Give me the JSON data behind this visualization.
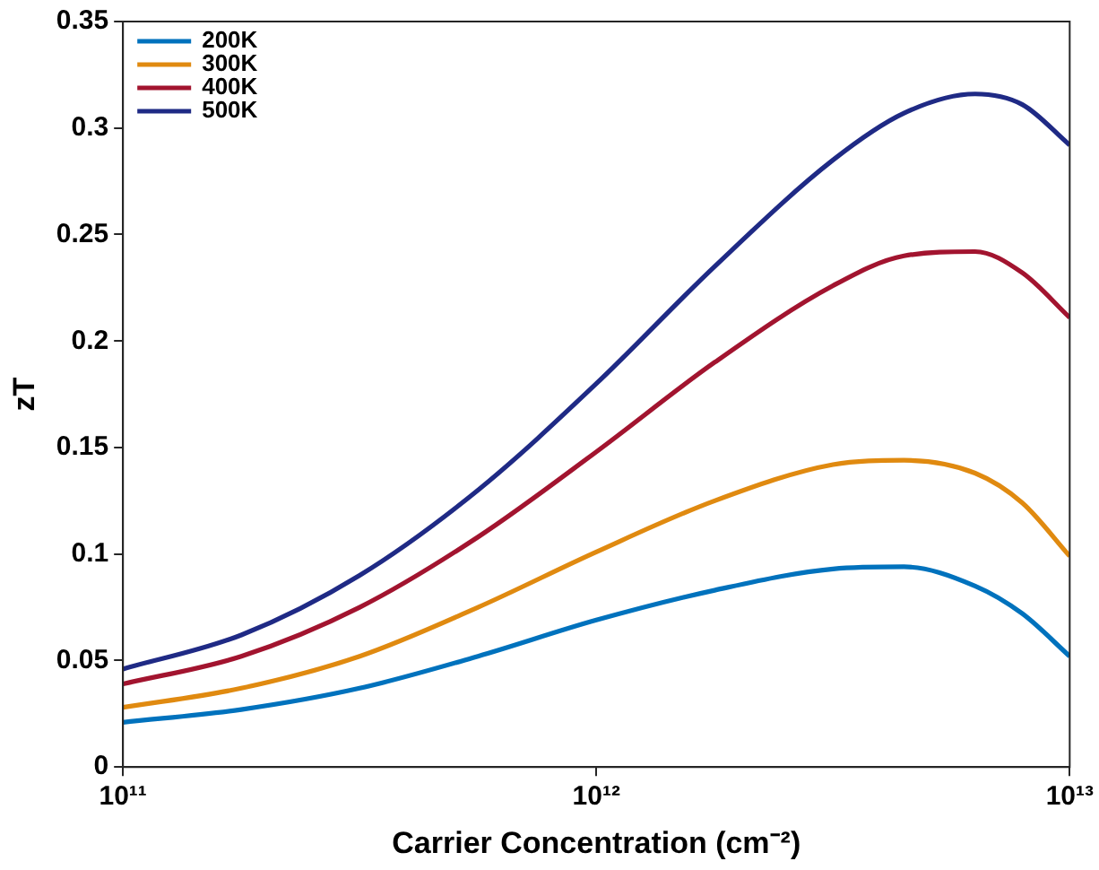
{
  "chart_data": {
    "type": "line",
    "xlabel": "Carrier Concentration (cm⁻²)",
    "ylabel": "zT",
    "x": [
      100000000000.0,
      177800000000.0,
      316200000000.0,
      562300000000.0,
      1000000000000.0,
      1778000000000.0,
      3162000000000.0,
      4467000000000.0,
      6310000000000.0,
      7943000000000.0,
      10000000000000.0
    ],
    "series": [
      {
        "name": "200K",
        "color": "#0072bd",
        "values": [
          0.021,
          0.027,
          0.037,
          0.052,
          0.069,
          0.083,
          0.093,
          0.094,
          0.085,
          0.072,
          0.052
        ]
      },
      {
        "name": "300K",
        "color": "#e08a10",
        "values": [
          0.028,
          0.037,
          0.052,
          0.075,
          0.101,
          0.125,
          0.142,
          0.144,
          0.138,
          0.124,
          0.099
        ]
      },
      {
        "name": "400K",
        "color": "#a2142f",
        "values": [
          0.039,
          0.052,
          0.075,
          0.108,
          0.148,
          0.19,
          0.226,
          0.24,
          0.242,
          0.232,
          0.211
        ]
      },
      {
        "name": "500K",
        "color": "#1f2a85",
        "values": [
          0.046,
          0.062,
          0.09,
          0.13,
          0.18,
          0.235,
          0.285,
          0.307,
          0.316,
          0.311,
          0.292
        ]
      }
    ],
    "log": "x",
    "xlim": [
      100000000000.0,
      10000000000000.0
    ],
    "xticks": [
      {
        "value": 100000000000.0,
        "label": "10¹¹"
      },
      {
        "value": 1000000000000.0,
        "label": "10¹²"
      },
      {
        "value": 10000000000000.0,
        "label": "10¹³"
      }
    ],
    "ylim": [
      0,
      0.35
    ],
    "yticks": [
      0,
      0.05,
      0.1,
      0.15,
      0.2,
      0.25,
      0.3,
      0.35
    ],
    "grid": false,
    "legend": "top left",
    "marker": "none",
    "line_style": "solid"
  }
}
